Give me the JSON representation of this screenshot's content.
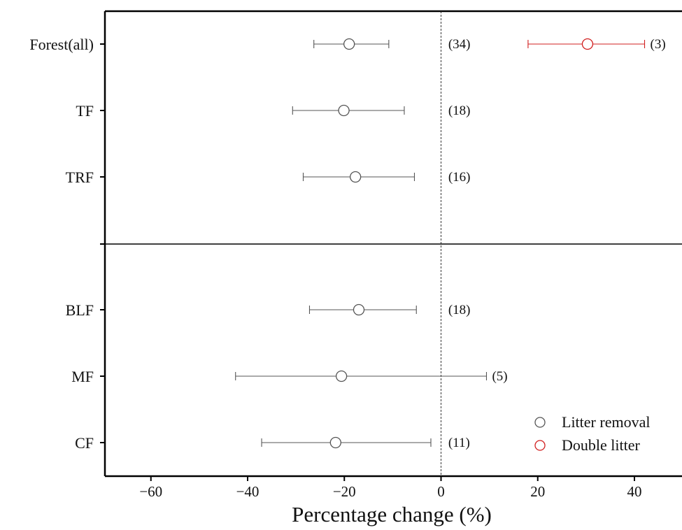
{
  "chart_data": {
    "type": "scatter",
    "subtype": "forest-plot",
    "xlabel": "Percentage change (%)",
    "xlim": [
      -70,
      50
    ],
    "xticks": [
      -60,
      -40,
      -20,
      0,
      20,
      40
    ],
    "xtick_labels": [
      "−60",
      "−40",
      "−20",
      "0",
      "20",
      "40"
    ],
    "reference_line_x": 0,
    "categories": [
      "Forest(all)",
      "TF",
      "TRF",
      "BLF",
      "MF",
      "CF"
    ],
    "series": [
      {
        "name": "Litter removal",
        "color": "#555555",
        "points": [
          {
            "category": "Forest(all)",
            "value": -19,
            "low": -26.3,
            "high": -10.8,
            "n": "(34)"
          },
          {
            "category": "TF",
            "value": -20.1,
            "low": -30.7,
            "high": -7.6,
            "n": "(18)"
          },
          {
            "category": "TRF",
            "value": -17.7,
            "low": -28.5,
            "high": -5.5,
            "n": "(16)"
          },
          {
            "category": "BLF",
            "value": -17,
            "low": -27.2,
            "high": -5.1,
            "n": "(18)"
          },
          {
            "category": "MF",
            "value": -20.6,
            "low": -42.5,
            "high": 9.4,
            "n": "(5)"
          },
          {
            "category": "CF",
            "value": -21.8,
            "low": -37.1,
            "high": -2.1,
            "n": "(11)"
          }
        ]
      },
      {
        "name": "Double litter",
        "color": "#d11f1f",
        "points": [
          {
            "category": "Forest(all)",
            "value": 30.3,
            "low": 18,
            "high": 42.1,
            "n": "(3)"
          }
        ]
      }
    ],
    "legend": {
      "placement": "bottom-right",
      "entries": [
        "Litter removal",
        "Double litter"
      ]
    }
  }
}
